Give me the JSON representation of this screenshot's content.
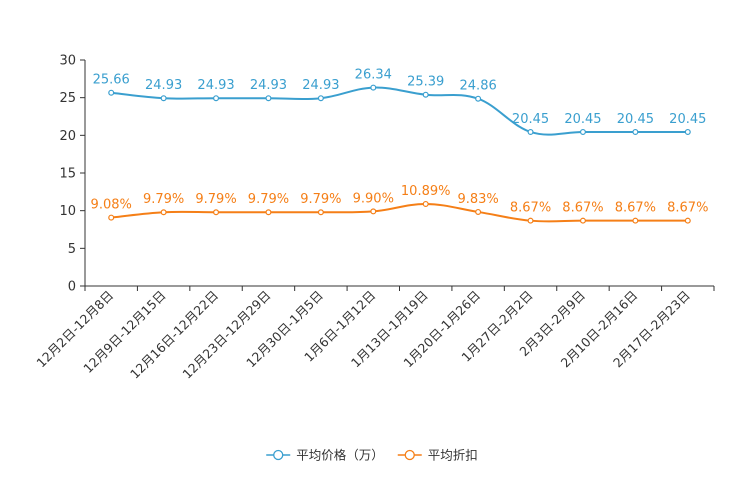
{
  "chart_data": {
    "type": "line",
    "title": "",
    "xlabel": "",
    "ylabel": "",
    "ylim": [
      0,
      30
    ],
    "yticks": [
      0,
      5,
      10,
      15,
      20,
      25,
      30
    ],
    "grid": false,
    "legend_position": "bottom-center",
    "categories": [
      "12月2日-12月8日",
      "12月9日-12月15日",
      "12月16日-12月22日",
      "12月23日-12月29日",
      "12月30日-1月5日",
      "1月6日-1月12日",
      "1月13日-1月19日",
      "1月20日-1月26日",
      "1月27日-2月2日",
      "2月3日-2月9日",
      "2月10日-2月16日",
      "2月17日-2月23日"
    ],
    "series": [
      {
        "name": "平均价格（万）",
        "color": "#3a9fcf",
        "values": [
          25.66,
          24.93,
          24.93,
          24.93,
          24.93,
          26.34,
          25.39,
          24.86,
          20.45,
          20.45,
          20.45,
          20.45
        ],
        "labels": [
          "25.66",
          "24.93",
          "24.93",
          "24.93",
          "24.93",
          "26.34",
          "25.39",
          "24.86",
          "20.45",
          "20.45",
          "20.45",
          "20.45"
        ]
      },
      {
        "name": "平均折扣",
        "color": "#f57f17",
        "values": [
          9.08,
          9.79,
          9.79,
          9.79,
          9.79,
          9.9,
          10.89,
          9.83,
          8.67,
          8.67,
          8.67,
          8.67
        ],
        "labels": [
          "9.08%",
          "9.79%",
          "9.79%",
          "9.79%",
          "9.79%",
          "9.90%",
          "10.89%",
          "9.83%",
          "8.67%",
          "8.67%",
          "8.67%",
          "8.67%"
        ]
      }
    ]
  }
}
